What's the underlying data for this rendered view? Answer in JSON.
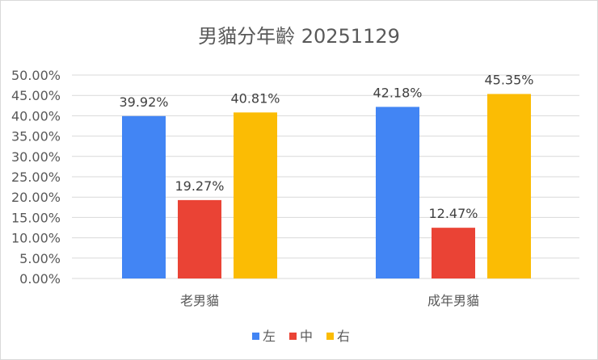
{
  "chart_data": {
    "type": "bar",
    "title": "男貓分年齡 20251129",
    "categories": [
      "老男貓",
      "成年男貓"
    ],
    "series": [
      {
        "name": "左",
        "color": "#4285F4",
        "values": [
          0.3992,
          0.4218
        ],
        "labels": [
          "39.92%",
          "42.18%"
        ]
      },
      {
        "name": "中",
        "color": "#EA4335",
        "values": [
          0.1927,
          0.1247
        ],
        "labels": [
          "19.27%",
          "12.47%"
        ]
      },
      {
        "name": "右",
        "color": "#FBBC04",
        "values": [
          0.4081,
          0.4535
        ],
        "labels": [
          "40.81%",
          "45.35%"
        ]
      }
    ],
    "ylim": [
      0,
      0.5
    ],
    "yticks": [
      {
        "value": 0,
        "label": "0.00%"
      },
      {
        "value": 0.05,
        "label": "5.00%"
      },
      {
        "value": 0.1,
        "label": "10.00%"
      },
      {
        "value": 0.15,
        "label": "15.00%"
      },
      {
        "value": 0.2,
        "label": "20.00%"
      },
      {
        "value": 0.25,
        "label": "25.00%"
      },
      {
        "value": 0.3,
        "label": "30.00%"
      },
      {
        "value": 0.35,
        "label": "35.00%"
      },
      {
        "value": 0.4,
        "label": "40.00%"
      },
      {
        "value": 0.45,
        "label": "45.00%"
      },
      {
        "value": 0.5,
        "label": "50.00%"
      }
    ],
    "grid": true,
    "legend_position": "bottom",
    "gridline_color": "#d9d9d9"
  }
}
